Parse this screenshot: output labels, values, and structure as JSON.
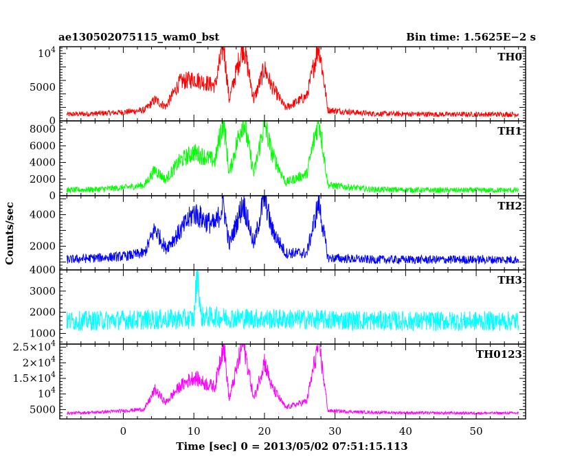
{
  "header": {
    "title": "ae130502075115_wam0_bst",
    "bin_time": "Bin time: 1.5625E−2 s"
  },
  "chart_data": {
    "type": "line",
    "title": "ae130502075115_wam0_bst",
    "xlabel": "Time [sec] 0 = 2013/05/02 07:51:15.113",
    "ylabel": "Counts/sec",
    "xlim": [
      -9,
      57
    ],
    "x_ticks": [
      "0",
      "10",
      "20",
      "30",
      "40",
      "50"
    ],
    "panels": [
      {
        "name": "TH0",
        "color": "#ff0000",
        "ylim": [
          0,
          11000
        ],
        "baseline": 900,
        "noise": 700,
        "y_ticks": [
          {
            "v": 0,
            "label": "0"
          },
          {
            "v": 5000,
            "label": "5000"
          },
          {
            "v": 10000,
            "label": "10",
            "exp": "4"
          }
        ],
        "series": [
          {
            "name": "TH0",
            "x": [
              -8,
              -4,
              0,
              3,
              4.5,
              6,
              8,
              10,
              11.5,
              13,
              14.2,
              15,
              17,
              18.5,
              20,
              21,
              23,
              26,
              27.7,
              29,
              35,
              45,
              55
            ],
            "values": [
              900,
              1000,
              1200,
              1500,
              3000,
              2000,
              5500,
              6000,
              5500,
              5000,
              11000,
              3000,
              11000,
              3000,
              7500,
              5000,
              1800,
              3500,
              11000,
              1500,
              1000,
              900,
              900
            ]
          }
        ]
      },
      {
        "name": "TH1",
        "color": "#00ff00",
        "ylim": [
          0,
          9000
        ],
        "baseline": 600,
        "noise": 600,
        "y_ticks": [
          {
            "v": 0,
            "label": "0"
          },
          {
            "v": 2000,
            "label": "2000"
          },
          {
            "v": 4000,
            "label": "4000"
          },
          {
            "v": 6000,
            "label": "6000"
          },
          {
            "v": 8000,
            "label": "8000"
          }
        ],
        "series": [
          {
            "name": "TH1",
            "x": [
              -8,
              -4,
              0,
              3,
              4.5,
              6,
              8,
              10,
              11.5,
              13,
              14.2,
              15,
              17,
              18.5,
              20,
              21,
              23,
              26,
              27.7,
              29,
              35,
              45,
              55
            ],
            "values": [
              600,
              700,
              900,
              1200,
              3000,
              1800,
              4000,
              5000,
              4500,
              4000,
              9000,
              2500,
              9000,
              2500,
              8500,
              5000,
              1500,
              2500,
              9000,
              1200,
              700,
              600,
              600
            ]
          }
        ]
      },
      {
        "name": "TH2",
        "color": "#0000ff",
        "ylim": [
          500,
          5200
        ],
        "baseline": 1100,
        "noise": 500,
        "y_ticks": [
          {
            "v": 2000,
            "label": "2000"
          },
          {
            "v": 4000,
            "label": "4000"
          }
        ],
        "series": [
          {
            "name": "TH2",
            "x": [
              -8,
              -4,
              0,
              3,
              4.5,
              6,
              8,
              10,
              11.5,
              13,
              14.2,
              15,
              17,
              18.5,
              20,
              21,
              23,
              26,
              27.7,
              29,
              35,
              45,
              55
            ],
            "values": [
              1100,
              1200,
              1300,
              1500,
              3000,
              1800,
              2800,
              4000,
              3500,
              3200,
              4500,
              2000,
              4600,
              2000,
              5000,
              3000,
              1500,
              1500,
              4600,
              1200,
              1100,
              1100,
              1100
            ]
          }
        ]
      },
      {
        "name": "TH3",
        "color": "#00ffff",
        "ylim": [
          500,
          4000
        ],
        "baseline": 1500,
        "noise": 850,
        "y_ticks": [
          {
            "v": 1000,
            "label": "1000"
          },
          {
            "v": 2000,
            "label": "2000"
          },
          {
            "v": 3000,
            "label": "3000"
          },
          {
            "v": 4000,
            "label": "4000"
          }
        ],
        "series": [
          {
            "name": "TH3",
            "x": [
              -8,
              0,
              10,
              10.5,
              11,
              20,
              30,
              40,
              55
            ],
            "values": [
              1500,
              1550,
              1600,
              3900,
              1700,
              1600,
              1550,
              1500,
              1500
            ]
          }
        ]
      },
      {
        "name": "TH0123",
        "color": "#ff00ff",
        "ylim": [
          2000,
          26000
        ],
        "baseline": 3800,
        "noise": 800,
        "y_ticks": [
          {
            "v": 5000,
            "label": "5000"
          },
          {
            "v": 10000,
            "label": "10",
            "exp": "4"
          },
          {
            "v": 15000,
            "label": "1.5×10",
            "exp": "4"
          },
          {
            "v": 20000,
            "label": "2×10",
            "exp": "4"
          },
          {
            "v": 25000,
            "label": "2.5×10",
            "exp": "4"
          }
        ],
        "series": [
          {
            "name": "TH0123",
            "x": [
              -8,
              -4,
              0,
              3,
              4.5,
              6,
              8,
              10,
              11.5,
              13,
              14.2,
              15,
              17,
              18.5,
              20,
              21,
              23,
              26,
              27.7,
              29,
              35,
              45,
              55
            ],
            "values": [
              3800,
              4000,
              4500,
              5000,
              11000,
              7000,
              12000,
              15000,
              13000,
              12000,
              26000,
              8000,
              26000,
              8000,
              20000,
              12000,
              5500,
              7500,
              26000,
              4500,
              4000,
              3800,
              3800
            ]
          }
        ]
      }
    ]
  }
}
